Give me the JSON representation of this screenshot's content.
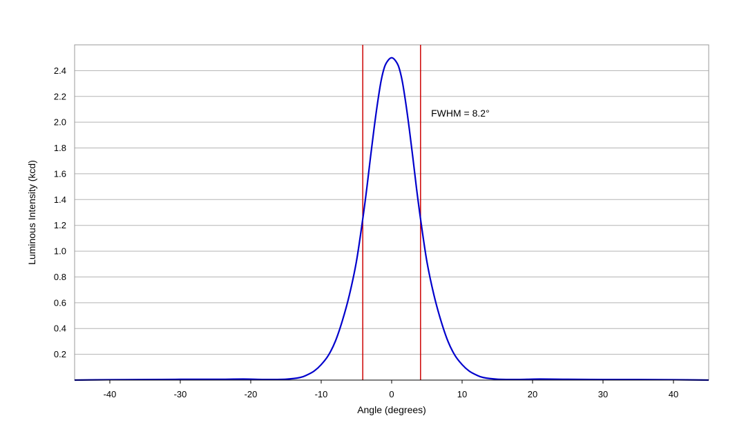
{
  "chart_data": {
    "type": "line",
    "title": "",
    "xlabel": "Angle (degrees)",
    "ylabel": "Luminous Intensity (kcd)",
    "xlim": [
      -45,
      45
    ],
    "ylim": [
      0,
      2.6
    ],
    "x_ticks": [
      -40,
      -30,
      -20,
      -10,
      0,
      10,
      20,
      30,
      40
    ],
    "y_ticks": [
      0.2,
      0.4,
      0.6,
      0.8,
      1.0,
      1.2,
      1.4,
      1.6,
      1.8,
      2.0,
      2.2,
      2.4
    ],
    "y_tick_labels": [
      "0.2",
      "0.4",
      "0.6",
      "0.8",
      "1.0",
      "1.2",
      "1.4",
      "1.6",
      "1.8",
      "2.0",
      "2.2",
      "2.4"
    ],
    "grid": {
      "horizontal": true,
      "vertical": false
    },
    "legend": "none",
    "series": [
      {
        "color": "#0000cc",
        "x": [
          -45,
          -40,
          -35,
          -30,
          -25,
          -21,
          -18,
          -15,
          -13,
          -12,
          -11,
          -10,
          -9,
          -8,
          -7,
          -6,
          -5,
          -4.1,
          -3.5,
          -3,
          -2.5,
          -2,
          -1.5,
          -1,
          -0.5,
          0,
          0.5,
          1,
          1.5,
          2,
          2.5,
          3,
          3.5,
          4.1,
          5,
          6,
          7,
          8,
          9,
          10,
          11,
          12,
          13,
          15,
          18,
          21,
          25,
          30,
          35,
          40,
          45
        ],
        "y": [
          0.0,
          0.003,
          0.004,
          0.006,
          0.006,
          0.008,
          0.005,
          0.007,
          0.02,
          0.04,
          0.07,
          0.12,
          0.19,
          0.3,
          0.46,
          0.66,
          0.92,
          1.25,
          1.5,
          1.73,
          1.95,
          2.15,
          2.32,
          2.43,
          2.48,
          2.5,
          2.48,
          2.43,
          2.32,
          2.15,
          1.95,
          1.73,
          1.5,
          1.25,
          0.92,
          0.66,
          0.46,
          0.3,
          0.19,
          0.12,
          0.07,
          0.04,
          0.02,
          0.007,
          0.005,
          0.008,
          0.006,
          0.004,
          0.004,
          0.003,
          0.0
        ]
      }
    ],
    "vertical_markers": [
      {
        "x": -4.1,
        "color": "#cc0000"
      },
      {
        "x": 4.1,
        "color": "#cc0000"
      }
    ],
    "annotations": [
      {
        "text": "FWHM = 8.2°",
        "x": 5.6,
        "y": 2.07
      }
    ]
  }
}
